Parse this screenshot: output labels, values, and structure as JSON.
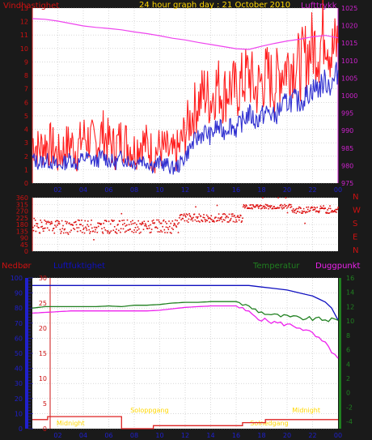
{
  "header": {
    "title": "24 hour graph day : 21 October 2010",
    "left_label": "Vindhastighet",
    "right_label": "Lufttrykk"
  },
  "colors": {
    "frame": "#1a1a1a",
    "plot_bg": "#ffffff",
    "grid": "#c0c0c0",
    "title": "#ffd700",
    "wind_gust": "#ff2020",
    "wind_avg": "#3030d0",
    "pressure": "#ee44ee",
    "direction": "#dd1111",
    "humidity": "#1010c0",
    "temperature": "#208020",
    "dewpoint": "#ee22ee",
    "rain": "#dd2222",
    "sun_label": "#ffd700",
    "axis_left_wind": "#cc1111",
    "axis_right_pressure": "#cc22cc",
    "axis_rain": "#2020cc",
    "axis_temp": "#208020",
    "text_left_bottom": "#cc1111"
  },
  "chart_data": [
    {
      "id": "wind_pressure",
      "type": "line",
      "title": "24 hour graph day : 21 October 2010",
      "left_axis_label": "Vindhastighet",
      "right_axis_label": "Lufttrykk",
      "x_ticks": [
        "02",
        "04",
        "06",
        "08",
        "10",
        "12",
        "14",
        "16",
        "18",
        "20",
        "22",
        "00"
      ],
      "y_left": {
        "min": 0,
        "max": 13,
        "ticks": [
          0,
          1,
          2,
          3,
          4,
          5,
          6,
          7,
          8,
          9,
          10,
          11,
          12,
          13
        ]
      },
      "y_right": {
        "min": 975,
        "max": 1025,
        "ticks": [
          975,
          980,
          985,
          990,
          995,
          1000,
          1005,
          1010,
          1015,
          1020,
          1025
        ]
      },
      "series": [
        {
          "key": "gust",
          "axis": "left",
          "x": [
            0,
            0.5,
            1,
            1.5,
            2,
            2.5,
            3,
            3.5,
            4,
            4.5,
            5,
            5.5,
            6,
            6.5,
            7,
            7.5,
            8,
            8.5,
            9,
            9.5,
            10,
            10.5,
            11,
            11.5,
            12,
            12.5,
            13,
            13.5,
            14,
            14.5,
            15,
            15.5,
            16,
            16.5,
            17,
            17.5,
            18,
            18.5,
            19,
            19.5,
            20,
            20.5,
            21,
            21.5,
            22,
            22.5,
            23,
            23.5,
            24
          ],
          "y": [
            3.2,
            2.5,
            3.0,
            2.8,
            2.0,
            2.6,
            3.0,
            2.4,
            3.5,
            3.2,
            2.8,
            3.8,
            3.0,
            2.6,
            3.4,
            2.9,
            2.5,
            3.1,
            2.8,
            2.2,
            2.6,
            2.4,
            2.0,
            2.5,
            3.8,
            5.0,
            6.0,
            6.8,
            6.2,
            7.4,
            6.5,
            7.2,
            6.8,
            7.5,
            8.2,
            6.8,
            7.6,
            8.0,
            7.2,
            8.4,
            8.8,
            9.0,
            8.6,
            9.5,
            10.2,
            10.0,
            11.8,
            9.6,
            10.4
          ]
        },
        {
          "key": "avg",
          "axis": "left",
          "x": [
            0,
            0.5,
            1,
            1.5,
            2,
            2.5,
            3,
            3.5,
            4,
            4.5,
            5,
            5.5,
            6,
            6.5,
            7,
            7.5,
            8,
            8.5,
            9,
            9.5,
            10,
            10.5,
            11,
            11.5,
            12,
            12.5,
            13,
            13.5,
            14,
            14.5,
            15,
            15.5,
            16,
            16.5,
            17,
            17.5,
            18,
            18.5,
            19,
            19.5,
            20,
            20.5,
            21,
            21.5,
            22,
            22.5,
            23,
            23.5,
            24
          ],
          "y": [
            1.8,
            1.5,
            1.7,
            1.6,
            1.2,
            1.5,
            1.8,
            1.4,
            1.9,
            1.8,
            1.6,
            2.0,
            1.7,
            1.5,
            1.9,
            1.7,
            1.5,
            1.8,
            1.6,
            1.3,
            1.5,
            1.4,
            1.1,
            1.3,
            2.0,
            2.8,
            3.4,
            3.8,
            3.5,
            4.2,
            3.8,
            4.4,
            4.0,
            4.6,
            5.2,
            4.6,
            5.0,
            5.3,
            4.9,
            5.6,
            6.0,
            6.2,
            6.0,
            6.5,
            7.0,
            7.1,
            7.6,
            7.2,
            8.4
          ]
        },
        {
          "key": "pressure",
          "axis": "right",
          "x": [
            0,
            1,
            2,
            3,
            4,
            5,
            6,
            7,
            8,
            9,
            10,
            11,
            12,
            13,
            14,
            15,
            16,
            17,
            18,
            19,
            20,
            21,
            22,
            23,
            24
          ],
          "y": [
            1022,
            1021.8,
            1021.3,
            1020.6,
            1019.9,
            1019.5,
            1019.2,
            1018.8,
            1018.2,
            1017.7,
            1017.1,
            1016.4,
            1015.9,
            1015.2,
            1014.6,
            1014.0,
            1013.4,
            1013.2,
            1014.1,
            1014.9,
            1015.6,
            1016.1,
            1016.8,
            1017.2,
            1016.5
          ]
        }
      ]
    },
    {
      "id": "wind_direction",
      "type": "scatter",
      "right_labels": [
        "N",
        "W",
        "S",
        "E",
        "N"
      ],
      "x_ticks": [],
      "y": {
        "min": 0,
        "max": 360,
        "ticks": [
          0,
          45,
          90,
          135,
          180,
          225,
          270,
          315,
          360
        ]
      },
      "segments": [
        {
          "from": 0,
          "to": 11.5,
          "center": 165,
          "spread": 45
        },
        {
          "from": 11.5,
          "to": 16.5,
          "center": 225,
          "spread": 30
        },
        {
          "from": 16.5,
          "to": 20.3,
          "center": 300,
          "spread": 15
        },
        {
          "from": 20.3,
          "to": 24,
          "center": 280,
          "spread": 25
        }
      ]
    },
    {
      "id": "rain_hum_temp",
      "type": "line",
      "labels": {
        "rain": "Nedbør",
        "humidity": "Luftfuktighet",
        "temperature": "Temperatur",
        "dewpoint": "Duggpunkt",
        "sun": [
          "Midnight",
          "Soloppgang",
          "Solnedgang",
          "Midnight"
        ]
      },
      "x_ticks": [
        "02",
        "04",
        "06",
        "08",
        "10",
        "12",
        "14",
        "16",
        "18",
        "20",
        "22",
        "00"
      ],
      "y_rain": {
        "min": 0,
        "max": 100,
        "ticks": [
          0,
          10,
          20,
          30,
          40,
          50,
          60,
          70,
          80,
          90,
          100
        ]
      },
      "y_hum": {
        "min": 0,
        "max": 30,
        "ticks": [
          0,
          5,
          10,
          15,
          20,
          25,
          30
        ]
      },
      "y_temp": {
        "min": -5,
        "max": 16,
        "ticks": [
          -4,
          -2,
          0,
          2,
          4,
          6,
          8,
          10,
          12,
          14,
          16
        ]
      },
      "series": [
        {
          "key": "humidity",
          "axis": "rain",
          "x": [
            0,
            1,
            2,
            3,
            4,
            5,
            6,
            7,
            8,
            9,
            10,
            11,
            12,
            13,
            14,
            15,
            16,
            17,
            18,
            19,
            20,
            21,
            22,
            22.5,
            23,
            23.5,
            24
          ],
          "y": [
            95,
            95,
            95,
            95,
            95,
            95,
            95,
            95,
            95,
            95,
            95,
            95,
            95,
            95,
            95,
            95,
            95,
            95,
            94,
            93,
            92,
            90,
            88,
            86,
            84,
            80,
            72
          ]
        },
        {
          "key": "temperature",
          "axis": "temp",
          "x": [
            0,
            1,
            2,
            3,
            4,
            5,
            6,
            7,
            8,
            9,
            10,
            11,
            12,
            13,
            14,
            15,
            16,
            17,
            18,
            19,
            20,
            21,
            22,
            23,
            24
          ],
          "y": [
            11.8,
            12.0,
            12.0,
            12.0,
            12.0,
            12.0,
            12.1,
            12.0,
            12.2,
            12.2,
            12.3,
            12.5,
            12.6,
            12.6,
            12.7,
            12.7,
            12.7,
            12.0,
            11.2,
            10.8,
            10.6,
            10.4,
            10.3,
            10.2,
            10.1
          ]
        },
        {
          "key": "dewpoint",
          "axis": "temp",
          "x": [
            0,
            1,
            2,
            3,
            4,
            5,
            6,
            7,
            8,
            9,
            10,
            11,
            12,
            13,
            14,
            15,
            16,
            17,
            18,
            19,
            20,
            21,
            22,
            23,
            24
          ],
          "y": [
            11.1,
            11.2,
            11.3,
            11.4,
            11.4,
            11.4,
            11.4,
            11.4,
            11.4,
            11.4,
            11.5,
            11.7,
            11.9,
            12.0,
            12.1,
            12.1,
            12.1,
            11.2,
            10.2,
            9.8,
            9.5,
            9.1,
            8.2,
            6.8,
            4.8
          ]
        },
        {
          "key": "rain",
          "axis": "rain",
          "x": [
            0,
            1.2,
            1.2,
            7,
            7,
            9.5,
            9.5,
            16.5,
            16.5,
            18.3,
            18.3,
            24
          ],
          "y": [
            6,
            6,
            8,
            8,
            0,
            0,
            2,
            2,
            4,
            4,
            6,
            6
          ]
        }
      ]
    }
  ]
}
